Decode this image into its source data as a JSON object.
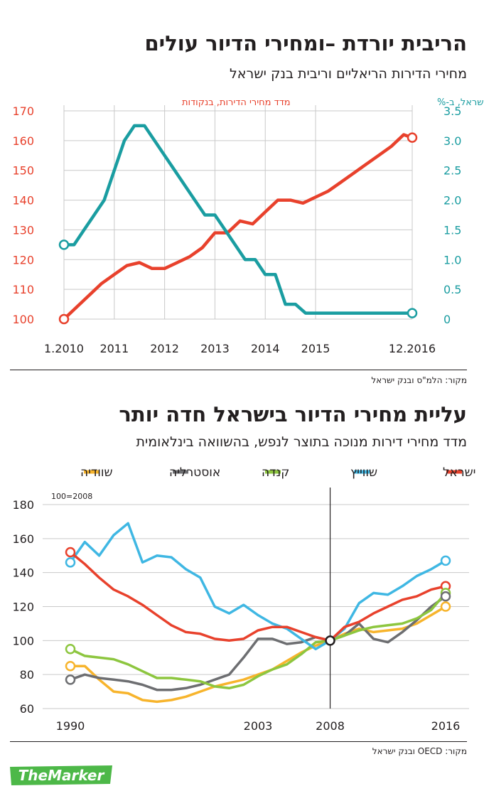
{
  "chart1": {
    "title": "הריבית יורדת –ומחירי הדיור עולים",
    "subtitle": "מחירי הדירות הריאליים וריבית בנק ישראל",
    "source": "מקור: הלמ\"ס ובנק ישראל"
  },
  "chart2": {
    "title": "עליית מחירי הדיור בישראל חדה יותר",
    "subtitle": "מדד מחירי דירות מנוכה בתוצר לנפש, בהשוואה בינלאומית",
    "source": "מקור: OECD ובנק ישראל"
  },
  "logo": {
    "text": "TheMarker",
    "color": "#4db848"
  },
  "chart_data": [
    {
      "type": "line",
      "x_tick_labels": [
        "1.2010",
        "2011",
        "2012",
        "2013",
        "2014",
        "2015",
        "12.2016"
      ],
      "xlim": [
        2010.0,
        2016.92
      ],
      "left_axis": {
        "label": "מדד מחירי הדירות, בנקודות",
        "ylim": [
          100,
          170
        ],
        "ticks": [
          "100",
          "110",
          "120",
          "130",
          "140",
          "150",
          "160",
          "170"
        ],
        "color": "#e8412c"
      },
      "right_axis": {
        "label": "ריבית בנק ישראל, ב-%",
        "ylim": [
          0,
          3.5
        ],
        "ticks": [
          "0",
          "0.5",
          "1.0",
          "1.5",
          "2.0",
          "2.5",
          "3.0",
          "3.5"
        ],
        "color": "#1a9da1"
      },
      "grid": true,
      "series": [
        {
          "axis": "left",
          "color": "#e8412c",
          "x": [
            2010.0,
            2010.25,
            2010.5,
            2010.75,
            2011.0,
            2011.25,
            2011.5,
            2011.75,
            2012.0,
            2012.25,
            2012.5,
            2012.75,
            2013.0,
            2013.25,
            2013.5,
            2013.75,
            2014.0,
            2014.25,
            2014.5,
            2014.75,
            2015.0,
            2015.25,
            2015.5,
            2015.75,
            2016.0,
            2016.25,
            2016.5,
            2016.75,
            2016.92
          ],
          "y": [
            100,
            104,
            108,
            112,
            115,
            118,
            119,
            117,
            117,
            119,
            121,
            124,
            129,
            129,
            133,
            132,
            136,
            140,
            140,
            139,
            141,
            143,
            146,
            149,
            152,
            155,
            158,
            162,
            161
          ]
        },
        {
          "axis": "right",
          "color": "#1a9da1",
          "x": [
            2010.0,
            2010.2,
            2010.4,
            2010.6,
            2010.8,
            2011.0,
            2011.2,
            2011.4,
            2011.6,
            2011.8,
            2012.0,
            2012.2,
            2012.4,
            2012.6,
            2012.8,
            2013.0,
            2013.2,
            2013.4,
            2013.6,
            2013.8,
            2014.0,
            2014.2,
            2014.4,
            2014.6,
            2014.8,
            2015.0,
            2015.5,
            2016.0,
            2016.5,
            2016.92
          ],
          "y": [
            1.25,
            1.25,
            1.5,
            1.75,
            2.0,
            2.5,
            3.0,
            3.25,
            3.25,
            3.0,
            2.75,
            2.5,
            2.25,
            2.0,
            1.75,
            1.75,
            1.5,
            1.25,
            1.0,
            1.0,
            0.75,
            0.75,
            0.25,
            0.25,
            0.1,
            0.1,
            0.1,
            0.1,
            0.1,
            0.1
          ]
        }
      ]
    },
    {
      "type": "line",
      "x_tick_labels": [
        "1990",
        "2003",
        "2008",
        "2016"
      ],
      "xlim": [
        1990,
        2016
      ],
      "ylim": [
        60,
        180
      ],
      "y_ticks": [
        "60",
        "80",
        "100",
        "120",
        "140",
        "160",
        "180"
      ],
      "annotation": "100=2008",
      "reference_year": 2008,
      "grid": true,
      "series": [
        {
          "name": "ישראל",
          "color": "#e8412c",
          "x": [
            1990,
            1991,
            1992,
            1993,
            1994,
            1995,
            1996,
            1997,
            1998,
            1999,
            2000,
            2001,
            2002,
            2003,
            2004,
            2005,
            2006,
            2007,
            2008,
            2009,
            2010,
            2011,
            2012,
            2013,
            2014,
            2015,
            2016
          ],
          "y": [
            152,
            145,
            137,
            130,
            126,
            121,
            115,
            109,
            105,
            104,
            101,
            100,
            101,
            106,
            108,
            108,
            105,
            102,
            100,
            108,
            111,
            116,
            120,
            124,
            126,
            130,
            132
          ]
        },
        {
          "name": "שווייץ",
          "color": "#3fb7e3",
          "x": [
            1990,
            1991,
            1992,
            1993,
            1994,
            1995,
            1996,
            1997,
            1998,
            1999,
            2000,
            2001,
            2002,
            2003,
            2004,
            2005,
            2006,
            2007,
            2008,
            2009,
            2010,
            2011,
            2012,
            2013,
            2014,
            2015,
            2016
          ],
          "y": [
            146,
            158,
            150,
            162,
            169,
            146,
            150,
            149,
            142,
            137,
            120,
            116,
            121,
            115,
            110,
            107,
            101,
            95,
            100,
            107,
            122,
            128,
            127,
            132,
            138,
            142,
            147
          ]
        },
        {
          "name": "קנדה",
          "color": "#8dc63f",
          "x": [
            1990,
            1991,
            1992,
            1993,
            1994,
            1995,
            1996,
            1997,
            1998,
            1999,
            2000,
            2001,
            2002,
            2003,
            2004,
            2005,
            2006,
            2007,
            2008,
            2009,
            2010,
            2011,
            2012,
            2013,
            2014,
            2015,
            2016
          ],
          "y": [
            95,
            91,
            90,
            89,
            86,
            82,
            78,
            78,
            77,
            76,
            73,
            72,
            74,
            79,
            83,
            86,
            92,
            99,
            100,
            103,
            106,
            108,
            109,
            110,
            113,
            118,
            128
          ]
        },
        {
          "name": "אוסטרליה",
          "color": "#6d6e71",
          "x": [
            1990,
            1991,
            1992,
            1993,
            1994,
            1995,
            1996,
            1997,
            1998,
            1999,
            2000,
            2001,
            2002,
            2003,
            2004,
            2005,
            2006,
            2007,
            2008,
            2009,
            2010,
            2011,
            2012,
            2013,
            2014,
            2015,
            2016
          ],
          "y": [
            77,
            80,
            78,
            77,
            76,
            74,
            71,
            71,
            72,
            74,
            77,
            80,
            90,
            101,
            101,
            98,
            99,
            102,
            100,
            103,
            110,
            101,
            99,
            105,
            112,
            120,
            126
          ]
        },
        {
          "name": "שוודיה",
          "color": "#f7b42c",
          "x": [
            1990,
            1991,
            1992,
            1993,
            1994,
            1995,
            1996,
            1997,
            1998,
            1999,
            2000,
            2001,
            2002,
            2003,
            2004,
            2005,
            2006,
            2007,
            2008,
            2009,
            2010,
            2011,
            2012,
            2013,
            2014,
            2015,
            2016
          ],
          "y": [
            85,
            85,
            77,
            70,
            69,
            65,
            64,
            65,
            67,
            70,
            73,
            75,
            77,
            80,
            83,
            88,
            93,
            97,
            100,
            104,
            107,
            105,
            106,
            107,
            110,
            115,
            120
          ]
        }
      ]
    }
  ]
}
